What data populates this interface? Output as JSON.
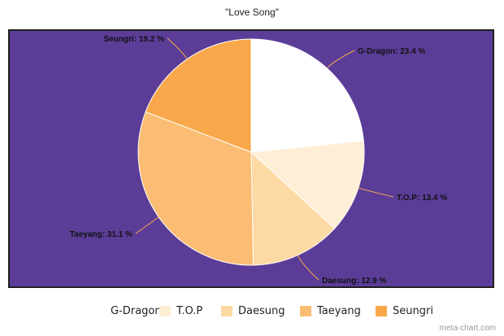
{
  "chart_data": {
    "type": "pie",
    "title": "\"Love Song\"",
    "categories": [
      "G-Dragon",
      "T.O.P",
      "Daesung",
      "Taeyang",
      "Seungri"
    ],
    "values": [
      23.4,
      13.4,
      12.9,
      31.1,
      19.2
    ],
    "unit": "%",
    "data_labels": [
      "G-Dragon: 23.4 %",
      "T.O.P: 13.4 %",
      "Daesung: 12.9 %",
      "Taeyang: 31.1 %",
      "Seungri: 19.2 %"
    ],
    "colors": [
      "#ffffff",
      "#feeed6",
      "#fdd9a3",
      "#fbbd73",
      "#f8a84a"
    ],
    "background_color": "#5b3d98",
    "leader_color": "#f8a84a",
    "legend_position": "bottom"
  },
  "footer": "meta-chart.com"
}
